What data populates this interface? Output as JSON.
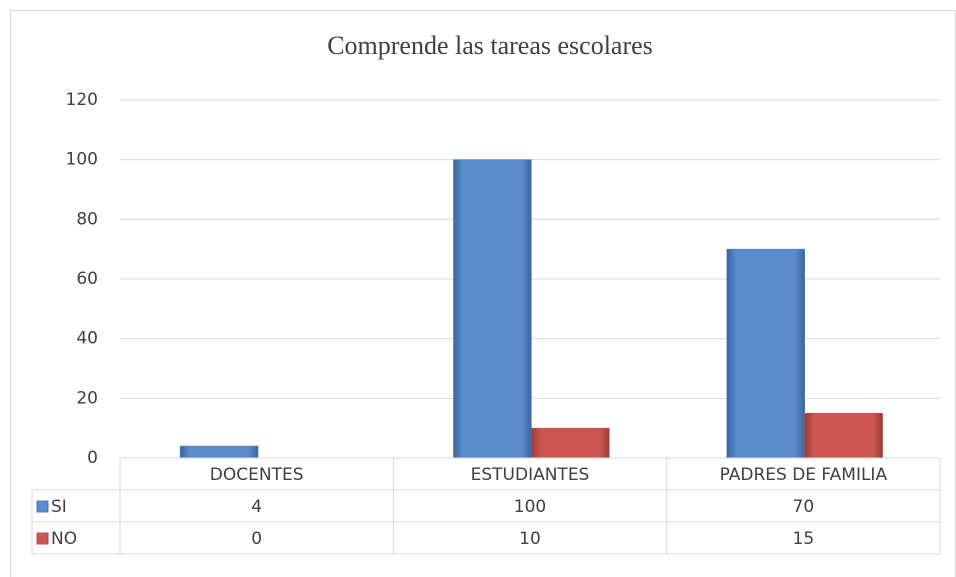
{
  "chart_data": {
    "type": "bar",
    "title": "Comprende las tareas escolares",
    "categories": [
      "DOCENTES",
      "ESTUDIANTES",
      "PADRES DE FAMILIA"
    ],
    "series": [
      {
        "name": "SI",
        "color": "#4f81bd",
        "values": [
          4,
          100,
          70
        ]
      },
      {
        "name": "NO",
        "color": "#c0504d",
        "values": [
          0,
          10,
          15
        ]
      }
    ],
    "ylim": [
      0,
      120
    ],
    "yticks": [
      0,
      20,
      40,
      60,
      80,
      100,
      120
    ],
    "grid": true
  }
}
